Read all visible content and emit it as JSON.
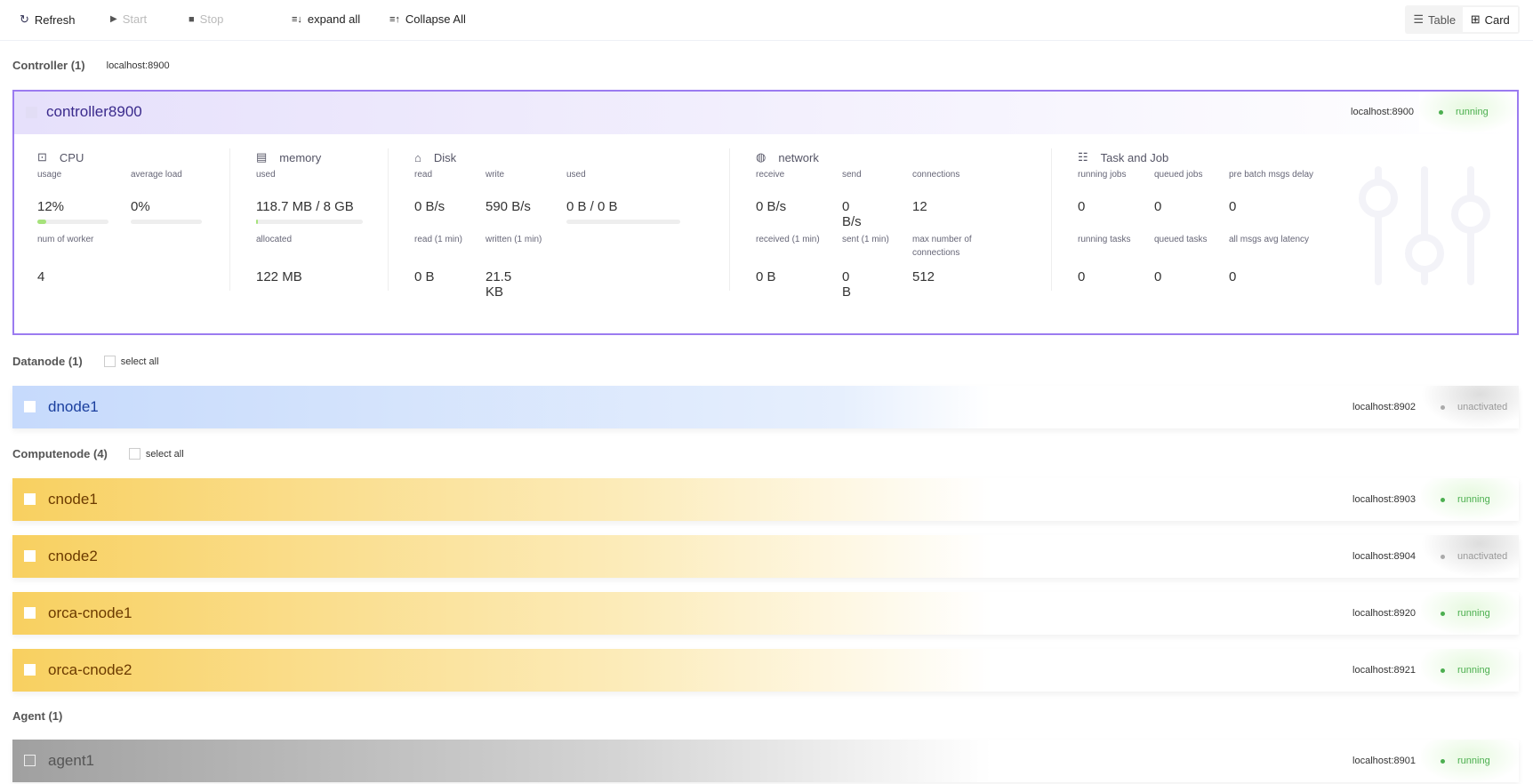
{
  "toolbar": {
    "refresh": "Refresh",
    "start": "Start",
    "stop": "Stop",
    "expand": "expand all",
    "collapse": "Collapse All",
    "view_table": "Table",
    "view_card": "Card",
    "active_view": "Card"
  },
  "controller_section": {
    "title": "Controller (1)",
    "host": "localhost:8900"
  },
  "controller": {
    "name": "controller8900",
    "host": "localhost:8900",
    "status": "running",
    "cpu": {
      "title": "CPU",
      "usage_label": "usage",
      "usage": "12%",
      "usage_pct": 12,
      "avg_label": "average load",
      "avg": "0%",
      "avg_pct": 0,
      "workers_label": "num of worker",
      "workers": "4"
    },
    "memory": {
      "title": "memory",
      "used_label": "used",
      "used": "118.7 MB / 8 GB",
      "used_pct": 1.4,
      "alloc_label": "allocated",
      "alloc": "122 MB"
    },
    "disk": {
      "title": "Disk",
      "read_label": "read",
      "read": "0 B/s",
      "write_label": "write",
      "write": "590 B/s",
      "used_label": "used",
      "used": "0 B / 0 B",
      "used_pct": 0,
      "read1_label": "read (1 min)",
      "read1": "0 B",
      "written1_label": "written (1 min)",
      "written1": "21.5 KB"
    },
    "network": {
      "title": "network",
      "recv_label": "receive",
      "recv": "0 B/s",
      "send_label": "send",
      "send": "0 B/s",
      "conn_label": "connections",
      "conn": "12",
      "recv1_label": "received (1 min)",
      "recv1": "0 B",
      "sent1_label": "sent (1 min)",
      "sent1": "0 B",
      "maxconn_label": "max number of connections",
      "maxconn": "512"
    },
    "task": {
      "title": "Task and Job",
      "rj_label": "running jobs",
      "rj": "0",
      "qj_label": "queued jobs",
      "qj": "0",
      "pb_label": "pre batch msgs delay",
      "pb": "0",
      "rt_label": "running tasks",
      "rt": "0",
      "qt_label": "queued tasks",
      "qt": "0",
      "al_label": "all msgs avg latency",
      "al": "0"
    }
  },
  "datanode_section": {
    "title": "Datanode (1)",
    "select_all": "select all"
  },
  "computenode_section": {
    "title": "Computenode (4)",
    "select_all": "select all"
  },
  "agent_section": {
    "title": "Agent (1)"
  },
  "nodes": [
    {
      "name": "dnode1",
      "host": "localhost:8902",
      "status": "unactivated"
    },
    {
      "name": "cnode1",
      "host": "localhost:8903",
      "status": "running"
    },
    {
      "name": "cnode2",
      "host": "localhost:8904",
      "status": "unactivated"
    },
    {
      "name": "orca-cnode1",
      "host": "localhost:8920",
      "status": "running"
    },
    {
      "name": "orca-cnode2",
      "host": "localhost:8921",
      "status": "running"
    },
    {
      "name": "agent1",
      "host": "localhost:8901",
      "status": "running"
    }
  ],
  "colors": {
    "controller": "#9b7bf0",
    "datanode": "#c6dafc",
    "computenode": "#f8d060",
    "agent": "#a0a0a0",
    "running": "#4caf50",
    "unactivated": "#999999"
  }
}
